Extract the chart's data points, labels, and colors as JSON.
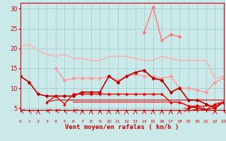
{
  "x": [
    0,
    1,
    2,
    3,
    4,
    5,
    6,
    7,
    8,
    9,
    10,
    11,
    12,
    13,
    14,
    15,
    16,
    17,
    18,
    19,
    20,
    21,
    22,
    23
  ],
  "series": [
    {
      "label": "light_pink_diagonal",
      "color": "#ffaaaa",
      "linewidth": 1.0,
      "marker": null,
      "markersize": 0,
      "values": [
        20.5,
        21.0,
        19.5,
        18.5,
        18.0,
        18.5,
        17.5,
        17.5,
        17.0,
        17.0,
        18.0,
        18.0,
        18.0,
        17.5,
        17.0,
        17.0,
        18.0,
        17.5,
        17.0,
        17.0,
        17.0,
        17.0,
        12.5,
        13.0
      ]
    },
    {
      "label": "light_pink_top_slant",
      "color": "#ffbbbb",
      "linewidth": 1.0,
      "marker": null,
      "markersize": 0,
      "values": [
        20.5,
        21.0,
        19.5,
        null,
        null,
        null,
        null,
        null,
        null,
        null,
        null,
        null,
        null,
        null,
        null,
        null,
        null,
        null,
        null,
        null,
        null,
        null,
        null,
        null
      ]
    },
    {
      "label": "pink_marker_line",
      "color": "#ff9999",
      "linewidth": 1.0,
      "marker": "D",
      "markersize": 2,
      "values": [
        null,
        null,
        null,
        null,
        15.0,
        12.0,
        12.5,
        12.5,
        12.5,
        12.5,
        13.0,
        12.0,
        13.0,
        13.5,
        13.0,
        13.0,
        12.5,
        13.0,
        10.0,
        10.0,
        9.5,
        9.0,
        11.5,
        12.5
      ]
    },
    {
      "label": "bright_pink_peak",
      "color": "#ff7777",
      "linewidth": 1.0,
      "marker": "D",
      "markersize": 2,
      "values": [
        null,
        null,
        null,
        null,
        null,
        null,
        null,
        null,
        null,
        null,
        null,
        null,
        null,
        null,
        24.0,
        30.5,
        22.0,
        23.5,
        23.0,
        null,
        null,
        null,
        null,
        null
      ]
    },
    {
      "label": "dark_red_main",
      "color": "#bb0000",
      "linewidth": 1.2,
      "marker": "D",
      "markersize": 2,
      "values": [
        13.0,
        11.5,
        8.5,
        8.0,
        8.0,
        8.0,
        8.0,
        9.0,
        9.0,
        9.0,
        13.0,
        11.5,
        13.0,
        14.0,
        14.5,
        12.5,
        12.0,
        9.0,
        10.0,
        7.0,
        7.0,
        6.0,
        5.0,
        6.5
      ]
    },
    {
      "label": "red_triangle_line",
      "color": "#ee0000",
      "linewidth": 1.0,
      "marker": "^",
      "markersize": 2,
      "values": [
        null,
        null,
        null,
        6.5,
        8.0,
        6.0,
        8.5,
        8.5,
        8.5,
        8.5,
        8.5,
        8.5,
        8.5,
        8.5,
        8.5,
        8.5,
        8.5,
        6.5,
        6.5,
        5.5,
        5.0,
        4.5,
        6.0,
        6.5
      ]
    },
    {
      "label": "red_flat1",
      "color": "#cc0000",
      "linewidth": 0.8,
      "marker": null,
      "markersize": 0,
      "values": [
        null,
        null,
        null,
        6.5,
        7.0,
        7.0,
        7.0,
        7.0,
        7.0,
        7.0,
        7.0,
        7.0,
        7.0,
        7.0,
        7.0,
        7.0,
        7.0,
        7.0,
        7.0,
        7.0,
        7.0,
        7.0,
        7.0,
        7.0
      ]
    },
    {
      "label": "red_flat2",
      "color": "#ff0000",
      "linewidth": 0.8,
      "marker": null,
      "markersize": 0,
      "values": [
        null,
        null,
        null,
        null,
        null,
        null,
        6.5,
        6.5,
        6.5,
        6.5,
        6.5,
        6.5,
        6.5,
        6.5,
        6.5,
        6.5,
        6.5,
        6.5,
        6.5,
        5.5,
        5.5,
        5.5,
        5.5,
        6.5
      ]
    },
    {
      "label": "red_flat3_markers",
      "color": "#dd0000",
      "linewidth": 0.8,
      "marker": "D",
      "markersize": 2,
      "values": [
        null,
        null,
        null,
        null,
        null,
        null,
        null,
        null,
        null,
        null,
        null,
        null,
        null,
        null,
        null,
        null,
        null,
        null,
        null,
        5.0,
        5.5,
        4.5,
        5.0,
        6.5
      ]
    }
  ],
  "arrow_angles": [
    225,
    210,
    180,
    225,
    225,
    210,
    225,
    180,
    180,
    180,
    180,
    180,
    180,
    180,
    180,
    180,
    180,
    180,
    180,
    90,
    45,
    45,
    180,
    210
  ],
  "xlabel": "Vent moyen/en rafales ( km/h )",
  "xlim": [
    0,
    23
  ],
  "ylim": [
    4.5,
    31.5
  ],
  "yticks": [
    5,
    10,
    15,
    20,
    25,
    30
  ],
  "xticks": [
    0,
    1,
    2,
    3,
    4,
    5,
    6,
    7,
    8,
    9,
    10,
    11,
    12,
    13,
    14,
    15,
    16,
    17,
    18,
    19,
    20,
    21,
    22,
    23
  ],
  "bg_color": "#cce9e9",
  "grid_color": "#99cccc",
  "axis_color": "#cc0000",
  "arrow_color": "#cc0000",
  "xlabel_color": "#cc0000",
  "tick_label_color": "#cc0000"
}
